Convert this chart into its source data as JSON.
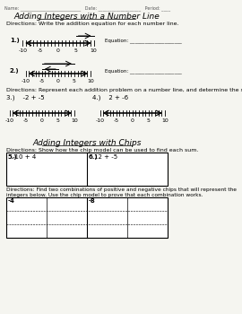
{
  "bg_color": "#f5f5f0",
  "title1": "Adding Integers with a Number Line",
  "title2": "Adding Integers with Chips",
  "header_line": "Name: ___________________________   Date: ___________________   Period: ____",
  "directions1": "Directions: Write the addition equation for each number line.",
  "directions2": "Directions: Represent each addition problem on a number line, and determine the sum.",
  "directions3": "Directions: Show how the chip model can be used to find each sum.",
  "directions4a": "Directions: Find two combinations of positive and negative chips that will represent the",
  "directions4b": "integers below. Use the chip model to prove that each combination works.",
  "prob3_label": "3.)    -2 + -5",
  "prob4_label": "4.)    2 + -6",
  "prob1_label": "1.)",
  "prob2_label": "2.)",
  "equation_label": "Equation: _____________________",
  "prob5_label": "-10 + 4",
  "prob6_label": "12 + -5",
  "prob5_num": "5.)",
  "prob6_num": "6.)",
  "chips_left_val": "-4",
  "chips_right_val": "-8"
}
